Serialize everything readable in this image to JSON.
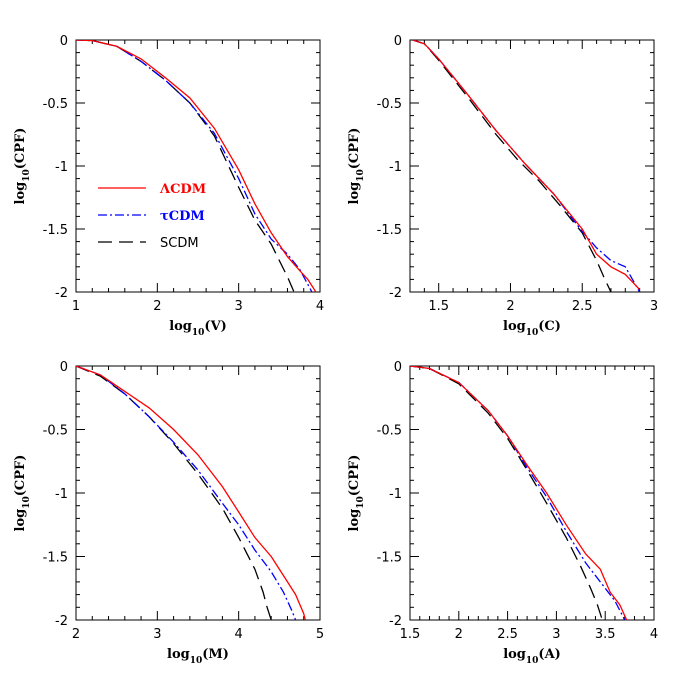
{
  "chart_data": [
    {
      "type": "line",
      "xlabel": "log10(V)",
      "ylabel": "log10(CPF)",
      "xlim": [
        1,
        4
      ],
      "ylim": [
        -2,
        0
      ],
      "xticks": [
        "1",
        "2",
        "3",
        "4"
      ],
      "yticks": [
        "0",
        "-0.5",
        "-1",
        "-1.5",
        "-2"
      ],
      "legend": {
        "placement": "center-left",
        "entries": [
          "ΛCDM",
          "τCDM",
          "SCDM"
        ]
      },
      "series": [
        {
          "name": "ΛCDM",
          "color": "#ff0000",
          "style": "solid",
          "points": [
            [
              1.0,
              0.0
            ],
            [
              1.2,
              -0.005
            ],
            [
              1.5,
              -0.05
            ],
            [
              1.8,
              -0.15
            ],
            [
              2.1,
              -0.3
            ],
            [
              2.4,
              -0.46
            ],
            [
              2.7,
              -0.7
            ],
            [
              3.0,
              -1.03
            ],
            [
              3.2,
              -1.3
            ],
            [
              3.4,
              -1.53
            ],
            [
              3.6,
              -1.72
            ],
            [
              3.75,
              -1.83
            ],
            [
              3.85,
              -1.9
            ],
            [
              3.95,
              -2.0
            ]
          ]
        },
        {
          "name": "τCDM",
          "color": "#0000ff",
          "style": "dashdot",
          "points": [
            [
              1.0,
              0.0
            ],
            [
              1.2,
              -0.005
            ],
            [
              1.5,
              -0.05
            ],
            [
              1.8,
              -0.17
            ],
            [
              2.1,
              -0.32
            ],
            [
              2.4,
              -0.5
            ],
            [
              2.7,
              -0.74
            ],
            [
              3.0,
              -1.1
            ],
            [
              3.2,
              -1.38
            ],
            [
              3.4,
              -1.58
            ],
            [
              3.6,
              -1.7
            ],
            [
              3.75,
              -1.82
            ],
            [
              3.9,
              -2.0
            ]
          ]
        },
        {
          "name": "SCDM",
          "color": "#000000",
          "style": "longdash",
          "points": [
            [
              1.0,
              0.0
            ],
            [
              1.2,
              -0.005
            ],
            [
              1.5,
              -0.05
            ],
            [
              1.8,
              -0.17
            ],
            [
              2.1,
              -0.32
            ],
            [
              2.4,
              -0.5
            ],
            [
              2.7,
              -0.76
            ],
            [
              3.0,
              -1.17
            ],
            [
              3.2,
              -1.43
            ],
            [
              3.4,
              -1.62
            ],
            [
              3.5,
              -1.75
            ],
            [
              3.6,
              -1.88
            ],
            [
              3.68,
              -2.0
            ]
          ]
        }
      ]
    },
    {
      "type": "line",
      "xlabel": "log10(C)",
      "ylabel": "log10(CPF)",
      "xlim": [
        1.3,
        3
      ],
      "ylim": [
        -2,
        0
      ],
      "xticks": [
        "1.5",
        "2",
        "2.5",
        "3"
      ],
      "yticks": [
        "0",
        "-0.5",
        "-1",
        "-1.5",
        "-2"
      ],
      "series": [
        {
          "name": "ΛCDM",
          "color": "#ff0000",
          "style": "solid",
          "points": [
            [
              1.32,
              0.0
            ],
            [
              1.4,
              -0.03
            ],
            [
              1.5,
              -0.15
            ],
            [
              1.7,
              -0.43
            ],
            [
              1.9,
              -0.72
            ],
            [
              2.1,
              -0.98
            ],
            [
              2.3,
              -1.22
            ],
            [
              2.5,
              -1.5
            ],
            [
              2.6,
              -1.7
            ],
            [
              2.7,
              -1.8
            ],
            [
              2.8,
              -1.86
            ],
            [
              2.9,
              -1.98
            ]
          ]
        },
        {
          "name": "τCDM",
          "color": "#0000ff",
          "style": "dashdot",
          "points": [
            [
              1.32,
              0.0
            ],
            [
              1.4,
              -0.03
            ],
            [
              1.5,
              -0.15
            ],
            [
              1.7,
              -0.43
            ],
            [
              1.9,
              -0.72
            ],
            [
              2.1,
              -0.98
            ],
            [
              2.3,
              -1.22
            ],
            [
              2.5,
              -1.52
            ],
            [
              2.6,
              -1.65
            ],
            [
              2.7,
              -1.75
            ],
            [
              2.8,
              -1.8
            ],
            [
              2.85,
              -1.9
            ],
            [
              2.9,
              -2.0
            ]
          ]
        },
        {
          "name": "SCDM",
          "color": "#000000",
          "style": "longdash",
          "points": [
            [
              1.32,
              0.0
            ],
            [
              1.4,
              -0.03
            ],
            [
              1.5,
              -0.16
            ],
            [
              1.7,
              -0.45
            ],
            [
              1.9,
              -0.75
            ],
            [
              2.05,
              -0.95
            ],
            [
              2.2,
              -1.12
            ],
            [
              2.35,
              -1.32
            ],
            [
              2.5,
              -1.53
            ],
            [
              2.6,
              -1.75
            ],
            [
              2.65,
              -1.88
            ],
            [
              2.7,
              -2.0
            ]
          ]
        }
      ]
    },
    {
      "type": "line",
      "xlabel": "log10(M)",
      "ylabel": "log10(CPF)",
      "xlim": [
        2,
        5
      ],
      "ylim": [
        -2,
        0
      ],
      "xticks": [
        "2",
        "3",
        "4",
        "5"
      ],
      "yticks": [
        "0",
        "-0.5",
        "-1",
        "-1.5",
        "-2"
      ],
      "series": [
        {
          "name": "ΛCDM",
          "color": "#ff0000",
          "style": "solid",
          "points": [
            [
              2.0,
              0.0
            ],
            [
              2.3,
              -0.07
            ],
            [
              2.6,
              -0.2
            ],
            [
              2.9,
              -0.33
            ],
            [
              3.2,
              -0.5
            ],
            [
              3.5,
              -0.7
            ],
            [
              3.8,
              -0.95
            ],
            [
              4.0,
              -1.15
            ],
            [
              4.2,
              -1.35
            ],
            [
              4.4,
              -1.5
            ],
            [
              4.6,
              -1.7
            ],
            [
              4.7,
              -1.8
            ],
            [
              4.8,
              -1.95
            ],
            [
              4.82,
              -2.0
            ]
          ]
        },
        {
          "name": "τCDM",
          "color": "#0000ff",
          "style": "dashdot",
          "points": [
            [
              2.0,
              0.0
            ],
            [
              2.3,
              -0.07
            ],
            [
              2.6,
              -0.22
            ],
            [
              2.9,
              -0.4
            ],
            [
              3.2,
              -0.6
            ],
            [
              3.5,
              -0.82
            ],
            [
              3.8,
              -1.08
            ],
            [
              4.0,
              -1.25
            ],
            [
              4.2,
              -1.45
            ],
            [
              4.4,
              -1.62
            ],
            [
              4.55,
              -1.78
            ],
            [
              4.65,
              -1.92
            ],
            [
              4.7,
              -2.0
            ]
          ]
        },
        {
          "name": "SCDM",
          "color": "#000000",
          "style": "longdash",
          "points": [
            [
              2.0,
              0.0
            ],
            [
              2.3,
              -0.08
            ],
            [
              2.6,
              -0.22
            ],
            [
              2.9,
              -0.4
            ],
            [
              3.2,
              -0.61
            ],
            [
              3.5,
              -0.85
            ],
            [
              3.8,
              -1.12
            ],
            [
              4.0,
              -1.35
            ],
            [
              4.2,
              -1.6
            ],
            [
              4.3,
              -1.78
            ],
            [
              4.35,
              -1.9
            ],
            [
              4.4,
              -2.0
            ]
          ]
        }
      ]
    },
    {
      "type": "line",
      "xlabel": "log10(A)",
      "ylabel": "log10(CPF)",
      "xlim": [
        1.5,
        4
      ],
      "ylim": [
        -2,
        0
      ],
      "xticks": [
        "1.5",
        "2",
        "2.5",
        "3",
        "3.5",
        "4"
      ],
      "yticks": [
        "0",
        "-0.5",
        "-1",
        "-1.5",
        "-2"
      ],
      "series": [
        {
          "name": "ΛCDM",
          "color": "#ff0000",
          "style": "solid",
          "points": [
            [
              1.5,
              0.0
            ],
            [
              1.7,
              -0.02
            ],
            [
              2.0,
              -0.13
            ],
            [
              2.3,
              -0.35
            ],
            [
              2.5,
              -0.55
            ],
            [
              2.7,
              -0.78
            ],
            [
              2.9,
              -1.0
            ],
            [
              3.1,
              -1.25
            ],
            [
              3.3,
              -1.48
            ],
            [
              3.45,
              -1.6
            ],
            [
              3.55,
              -1.78
            ],
            [
              3.65,
              -1.88
            ],
            [
              3.72,
              -2.0
            ]
          ]
        },
        {
          "name": "τCDM",
          "color": "#0000ff",
          "style": "dashdot",
          "points": [
            [
              1.5,
              0.0
            ],
            [
              1.7,
              -0.02
            ],
            [
              2.0,
              -0.13
            ],
            [
              2.3,
              -0.35
            ],
            [
              2.5,
              -0.55
            ],
            [
              2.7,
              -0.8
            ],
            [
              2.9,
              -1.03
            ],
            [
              3.1,
              -1.3
            ],
            [
              3.3,
              -1.55
            ],
            [
              3.45,
              -1.7
            ],
            [
              3.6,
              -1.85
            ],
            [
              3.7,
              -2.0
            ]
          ]
        },
        {
          "name": "SCDM",
          "color": "#000000",
          "style": "longdash",
          "points": [
            [
              1.5,
              0.0
            ],
            [
              1.7,
              -0.02
            ],
            [
              2.0,
              -0.14
            ],
            [
              2.3,
              -0.37
            ],
            [
              2.5,
              -0.57
            ],
            [
              2.7,
              -0.82
            ],
            [
              2.9,
              -1.08
            ],
            [
              3.1,
              -1.35
            ],
            [
              3.25,
              -1.58
            ],
            [
              3.35,
              -1.75
            ],
            [
              3.42,
              -1.88
            ],
            [
              3.47,
              -2.0
            ]
          ]
        }
      ]
    }
  ]
}
